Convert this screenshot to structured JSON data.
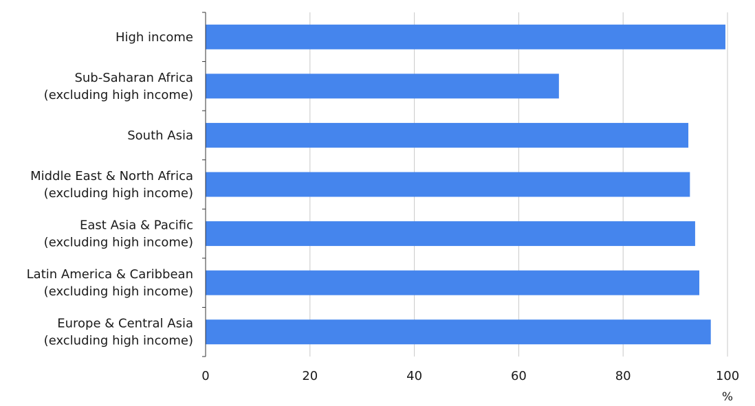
{
  "chart_data": {
    "type": "bar",
    "orientation": "horizontal",
    "categories": [
      [
        "High income"
      ],
      [
        "Sub-Saharan Africa",
        "(excluding high income)"
      ],
      [
        "South Asia"
      ],
      [
        "Middle East & North Africa",
        "(excluding high income)"
      ],
      [
        "East Asia & Pacific",
        "(excluding high income)"
      ],
      [
        "Latin America & Caribbean",
        "(excluding high income)"
      ],
      [
        "Europe & Central Asia",
        "(excluding high income)"
      ]
    ],
    "values": [
      99.6,
      67.7,
      92.5,
      92.8,
      93.8,
      94.6,
      96.8
    ],
    "xlim": [
      0,
      100
    ],
    "xticks": [
      0,
      20,
      40,
      60,
      80,
      100
    ],
    "xlabel": "%",
    "ylabel": "",
    "title": "",
    "grid": "vertical",
    "legend": "none",
    "colors": {
      "bar": "#4585ed",
      "grid": "#c8c8c8",
      "axis": "#333333"
    }
  }
}
